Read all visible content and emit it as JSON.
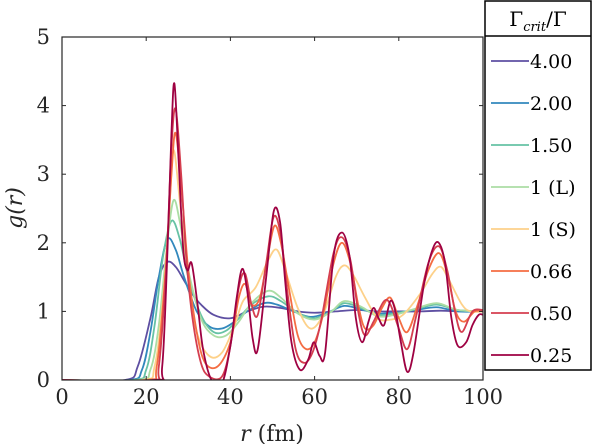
{
  "chart_data": {
    "type": "line",
    "xlabel_main": "r",
    "xlabel_unit": "(fm)",
    "ylabel": "g(r)",
    "xlim": [
      0,
      100
    ],
    "ylim": [
      0,
      5
    ],
    "xticks": [
      0,
      20,
      40,
      60,
      80,
      100
    ],
    "yticks": [
      0,
      1,
      2,
      3,
      4,
      5
    ],
    "grid": false,
    "legend_position": "right, outside plot",
    "legend_title": "Γcrit/Γ",
    "legend_title_main": "Γ",
    "legend_title_sub": "crit",
    "legend_title_tail": "/Γ",
    "series": [
      {
        "name": "4.00",
        "color": "#5e4fa2",
        "points": [
          [
            0,
            0
          ],
          [
            15,
            0
          ],
          [
            18,
            0.2
          ],
          [
            21,
            0.9
          ],
          [
            23,
            1.5
          ],
          [
            25,
            1.72
          ],
          [
            27,
            1.65
          ],
          [
            29,
            1.45
          ],
          [
            31,
            1.25
          ],
          [
            33,
            1.1
          ],
          [
            36,
            0.95
          ],
          [
            40,
            0.9
          ],
          [
            44,
            1.0
          ],
          [
            48,
            1.07
          ],
          [
            52,
            1.05
          ],
          [
            56,
            1.0
          ],
          [
            60,
            0.98
          ],
          [
            65,
            1.0
          ],
          [
            70,
            1.02
          ],
          [
            75,
            1.0
          ],
          [
            80,
            1.0
          ],
          [
            85,
            1.0
          ],
          [
            90,
            1.01
          ],
          [
            95,
            1.0
          ],
          [
            100,
            1.0
          ]
        ]
      },
      {
        "name": "2.00",
        "color": "#3288bd",
        "points": [
          [
            0,
            0
          ],
          [
            16,
            0
          ],
          [
            19,
            0.15
          ],
          [
            21,
            0.7
          ],
          [
            23,
            1.5
          ],
          [
            25,
            2.05
          ],
          [
            27,
            1.9
          ],
          [
            29,
            1.5
          ],
          [
            32,
            1.0
          ],
          [
            35,
            0.78
          ],
          [
            38,
            0.75
          ],
          [
            41,
            0.85
          ],
          [
            44,
            1.0
          ],
          [
            48,
            1.12
          ],
          [
            51,
            1.1
          ],
          [
            55,
            1.0
          ],
          [
            59,
            0.92
          ],
          [
            63,
            0.98
          ],
          [
            67,
            1.08
          ],
          [
            71,
            1.03
          ],
          [
            75,
            0.97
          ],
          [
            79,
            0.98
          ],
          [
            84,
            1.02
          ],
          [
            89,
            1.06
          ],
          [
            94,
            1.0
          ],
          [
            100,
            1.0
          ]
        ]
      },
      {
        "name": "1.50",
        "color": "#66c2a5",
        "points": [
          [
            0,
            0
          ],
          [
            17,
            0
          ],
          [
            20,
            0.15
          ],
          [
            22,
            0.8
          ],
          [
            24,
            1.8
          ],
          [
            26,
            2.32
          ],
          [
            28,
            2.05
          ],
          [
            30,
            1.5
          ],
          [
            33,
            0.95
          ],
          [
            36,
            0.7
          ],
          [
            39,
            0.72
          ],
          [
            42,
            0.9
          ],
          [
            45,
            1.1
          ],
          [
            49,
            1.22
          ],
          [
            52,
            1.15
          ],
          [
            56,
            0.98
          ],
          [
            60,
            0.9
          ],
          [
            64,
            1.0
          ],
          [
            67,
            1.12
          ],
          [
            71,
            1.05
          ],
          [
            75,
            0.95
          ],
          [
            79,
            0.97
          ],
          [
            84,
            1.03
          ],
          [
            89,
            1.1
          ],
          [
            94,
            1.02
          ],
          [
            100,
            1.0
          ]
        ]
      },
      {
        "name": "1 (L)",
        "color": "#abdda4",
        "points": [
          [
            0,
            0
          ],
          [
            18,
            0
          ],
          [
            21,
            0.15
          ],
          [
            23,
            0.8
          ],
          [
            25,
            2.0
          ],
          [
            26.5,
            2.62
          ],
          [
            28,
            2.3
          ],
          [
            30,
            1.6
          ],
          [
            33,
            0.9
          ],
          [
            36,
            0.65
          ],
          [
            39,
            0.65
          ],
          [
            42,
            0.85
          ],
          [
            45,
            1.12
          ],
          [
            49,
            1.3
          ],
          [
            52,
            1.2
          ],
          [
            56,
            0.97
          ],
          [
            60,
            0.88
          ],
          [
            64,
            1.0
          ],
          [
            67,
            1.15
          ],
          [
            71,
            1.07
          ],
          [
            75,
            0.93
          ],
          [
            79,
            0.95
          ],
          [
            84,
            1.04
          ],
          [
            89,
            1.12
          ],
          [
            94,
            1.02
          ],
          [
            100,
            1.0
          ]
        ]
      },
      {
        "name": "1 (S)",
        "color": "#fdd18a",
        "points": [
          [
            0,
            0
          ],
          [
            19,
            0
          ],
          [
            22,
            0.2
          ],
          [
            24,
            1.2
          ],
          [
            25.5,
            2.5
          ],
          [
            26.5,
            3.35
          ],
          [
            28,
            2.6
          ],
          [
            30,
            1.5
          ],
          [
            32,
            0.7
          ],
          [
            35,
            0.35
          ],
          [
            38,
            0.4
          ],
          [
            41,
            0.8
          ],
          [
            43,
            1.15
          ],
          [
            46,
            1.35
          ],
          [
            49,
            1.75
          ],
          [
            51,
            1.9
          ],
          [
            53,
            1.6
          ],
          [
            56,
            1.05
          ],
          [
            59,
            0.75
          ],
          [
            62,
            0.95
          ],
          [
            65,
            1.5
          ],
          [
            67,
            1.67
          ],
          [
            69,
            1.55
          ],
          [
            72,
            1.2
          ],
          [
            75,
            0.9
          ],
          [
            78,
            0.88
          ],
          [
            81,
            0.95
          ],
          [
            85,
            1.25
          ],
          [
            88,
            1.55
          ],
          [
            90,
            1.65
          ],
          [
            92,
            1.45
          ],
          [
            95,
            1.1
          ],
          [
            97,
            1.0
          ],
          [
            100,
            1.0
          ]
        ]
      },
      {
        "name": "0.66",
        "color": "#f46d43",
        "points": [
          [
            0,
            0
          ],
          [
            20,
            0
          ],
          [
            22.5,
            0.2
          ],
          [
            24.5,
            1.5
          ],
          [
            26,
            3.0
          ],
          [
            27,
            3.6
          ],
          [
            28.5,
            2.7
          ],
          [
            30,
            1.6
          ],
          [
            32,
            0.7
          ],
          [
            34,
            0.25
          ],
          [
            37,
            0.2
          ],
          [
            40,
            0.55
          ],
          [
            42,
            1.2
          ],
          [
            43.5,
            1.4
          ],
          [
            45,
            1.1
          ],
          [
            47,
            1.2
          ],
          [
            49,
            1.85
          ],
          [
            50.5,
            2.25
          ],
          [
            52,
            2.0
          ],
          [
            54,
            1.3
          ],
          [
            56,
            0.65
          ],
          [
            58,
            0.45
          ],
          [
            60,
            0.55
          ],
          [
            62,
            0.95
          ],
          [
            64.5,
            1.7
          ],
          [
            66.5,
            2.0
          ],
          [
            68.5,
            1.7
          ],
          [
            70.5,
            1.05
          ],
          [
            72,
            0.75
          ],
          [
            74,
            0.8
          ],
          [
            76,
            1.05
          ],
          [
            78,
            1.2
          ],
          [
            80,
            0.9
          ],
          [
            82,
            0.7
          ],
          [
            84.5,
            1.1
          ],
          [
            87,
            1.6
          ],
          [
            89.5,
            1.85
          ],
          [
            91.5,
            1.55
          ],
          [
            93.5,
            1.0
          ],
          [
            95.5,
            0.85
          ],
          [
            98,
            1.0
          ],
          [
            100,
            1.0
          ]
        ]
      },
      {
        "name": "0.50",
        "color": "#d53e4f",
        "points": [
          [
            0,
            0
          ],
          [
            21,
            0
          ],
          [
            23,
            0.2
          ],
          [
            24.8,
            1.7
          ],
          [
            26,
            3.4
          ],
          [
            27,
            3.95
          ],
          [
            28.3,
            3.0
          ],
          [
            29.5,
            1.8
          ],
          [
            31,
            0.9
          ],
          [
            33,
            0.25
          ],
          [
            35,
            0.05
          ],
          [
            38,
            0.05
          ],
          [
            40,
            0.5
          ],
          [
            42,
            1.35
          ],
          [
            43.5,
            1.55
          ],
          [
            45,
            1.1
          ],
          [
            46.5,
            0.95
          ],
          [
            48.5,
            1.7
          ],
          [
            50.3,
            2.38
          ],
          [
            52,
            2.1
          ],
          [
            53.5,
            1.3
          ],
          [
            55.5,
            0.45
          ],
          [
            57.5,
            0.25
          ],
          [
            59.5,
            0.4
          ],
          [
            61.5,
            0.85
          ],
          [
            64.5,
            1.85
          ],
          [
            66.5,
            2.08
          ],
          [
            68.5,
            1.75
          ],
          [
            70.5,
            0.95
          ],
          [
            72,
            0.65
          ],
          [
            74,
            0.85
          ],
          [
            76.5,
            1.15
          ],
          [
            78,
            1.1
          ],
          [
            80,
            0.75
          ],
          [
            82,
            0.45
          ],
          [
            84,
            0.9
          ],
          [
            87,
            1.7
          ],
          [
            89.5,
            1.95
          ],
          [
            91.5,
            1.6
          ],
          [
            93.5,
            0.95
          ],
          [
            95,
            0.7
          ],
          [
            97.5,
            1.0
          ],
          [
            100,
            1.02
          ]
        ]
      },
      {
        "name": "0.25",
        "color": "#9e0142",
        "points": [
          [
            0,
            0
          ],
          [
            22,
            0
          ],
          [
            23.8,
            0.2
          ],
          [
            25,
            1.8
          ],
          [
            26,
            3.6
          ],
          [
            26.7,
            4.32
          ],
          [
            27.7,
            3.2
          ],
          [
            28.8,
            1.9
          ],
          [
            29.8,
            1.6
          ],
          [
            30.8,
            1.7
          ],
          [
            32.2,
            1.1
          ],
          [
            33.5,
            0.45
          ],
          [
            35.5,
            0.0
          ],
          [
            38,
            -0.05
          ],
          [
            40,
            0.5
          ],
          [
            41.5,
            1.2
          ],
          [
            42.8,
            1.62
          ],
          [
            44,
            1.3
          ],
          [
            45.3,
            0.6
          ],
          [
            46.5,
            0.45
          ],
          [
            48.5,
            1.5
          ],
          [
            50.3,
            2.46
          ],
          [
            51.8,
            2.3
          ],
          [
            53,
            1.45
          ],
          [
            54.5,
            0.55
          ],
          [
            56.5,
            0.15
          ],
          [
            58.5,
            0.3
          ],
          [
            59.8,
            0.55
          ],
          [
            61.2,
            0.35
          ],
          [
            62.5,
            0.4
          ],
          [
            64.5,
            1.8
          ],
          [
            66.5,
            2.15
          ],
          [
            68.3,
            1.8
          ],
          [
            69.8,
            0.9
          ],
          [
            71.3,
            0.55
          ],
          [
            72.8,
            0.85
          ],
          [
            74,
            1.05
          ],
          [
            75.2,
            0.9
          ],
          [
            76.5,
            0.8
          ],
          [
            78,
            1.15
          ],
          [
            79.2,
            1.0
          ],
          [
            80.5,
            0.55
          ],
          [
            82,
            0.12
          ],
          [
            83.5,
            0.4
          ],
          [
            86,
            1.4
          ],
          [
            88,
            1.9
          ],
          [
            89.5,
            2.0
          ],
          [
            91,
            1.7
          ],
          [
            92.5,
            0.9
          ],
          [
            94,
            0.5
          ],
          [
            96,
            0.55
          ],
          [
            97.5,
            0.8
          ],
          [
            99,
            0.95
          ],
          [
            100,
            0.95
          ]
        ]
      }
    ]
  }
}
